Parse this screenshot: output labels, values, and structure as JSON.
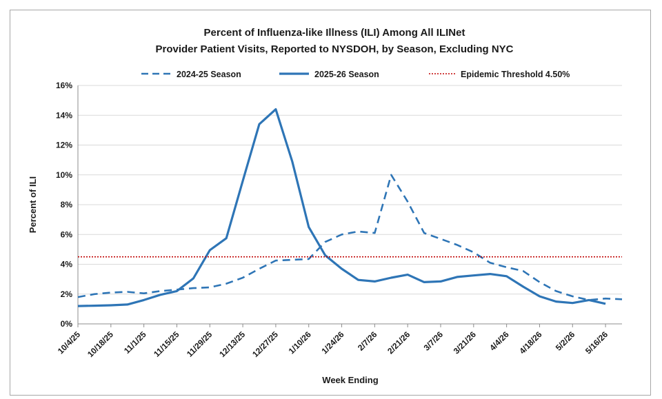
{
  "chart_data": {
    "type": "line",
    "title_lines": [
      "Percent of Influenza-like Illness (ILI) Among All ILINet",
      "Provider Patient Visits, Reported to NYSDOH, by Season, Excluding NYC"
    ],
    "xlabel": "Week Ending",
    "ylabel": "Percent of ILI",
    "ylim": [
      0,
      16
    ],
    "yticks": [
      "0%",
      "2%",
      "4%",
      "6%",
      "8%",
      "10%",
      "12%",
      "14%",
      "16%"
    ],
    "x_labels": [
      "10/4/25",
      "10/18/25",
      "11/1/25",
      "11/15/25",
      "11/29/25",
      "12/13/25",
      "12/27/25",
      "1/10/26",
      "1/24/26",
      "2/7/26",
      "2/21/26",
      "3/7/26",
      "3/21/26",
      "4/4/26",
      "4/18/26",
      "5/2/26",
      "5/16/26"
    ],
    "x_weeks": [
      "10/4/25",
      "10/11/25",
      "10/18/25",
      "10/25/25",
      "11/1/25",
      "11/8/25",
      "11/15/25",
      "11/22/25",
      "11/29/25",
      "12/6/25",
      "12/13/25",
      "12/20/25",
      "12/27/25",
      "1/3/26",
      "1/10/26",
      "1/17/26",
      "1/24/26",
      "1/31/26",
      "2/7/26",
      "2/14/26",
      "2/21/26",
      "2/28/26",
      "3/7/26",
      "3/14/26",
      "3/21/26",
      "3/28/26",
      "4/4/26",
      "4/11/26",
      "4/18/26",
      "4/25/26",
      "5/2/26",
      "5/9/26",
      "5/16/26",
      "5/23/26"
    ],
    "grid": true,
    "legend_position": "top",
    "series": [
      {
        "name": "2024-25 Season",
        "style": "dashed",
        "color": "#2e75b6",
        "values": [
          1.8,
          2.0,
          2.1,
          2.15,
          2.05,
          2.2,
          2.3,
          2.4,
          2.45,
          2.7,
          3.1,
          3.7,
          4.25,
          4.3,
          4.35,
          5.5,
          6.0,
          6.2,
          6.1,
          10.0,
          8.2,
          6.1,
          5.7,
          5.3,
          4.8,
          4.1,
          3.8,
          3.55,
          2.8,
          2.2,
          1.85,
          1.6,
          1.7,
          1.65
        ]
      },
      {
        "name": "2025-26 Season",
        "style": "solid",
        "color": "#2e75b6",
        "values": [
          1.2,
          1.22,
          1.25,
          1.3,
          1.6,
          1.95,
          2.2,
          3.05,
          4.95,
          5.75,
          9.6,
          13.4,
          14.4,
          10.9,
          6.5,
          4.6,
          3.7,
          2.95,
          2.85,
          3.1,
          3.3,
          2.8,
          2.85,
          3.15,
          3.25,
          3.35,
          3.2,
          2.5,
          1.85,
          1.5,
          1.4,
          1.6,
          1.35
        ]
      },
      {
        "name": "Epidemic Threshold 4.50%",
        "style": "dotted",
        "color": "#c00000",
        "values": [
          4.5
        ]
      }
    ]
  }
}
